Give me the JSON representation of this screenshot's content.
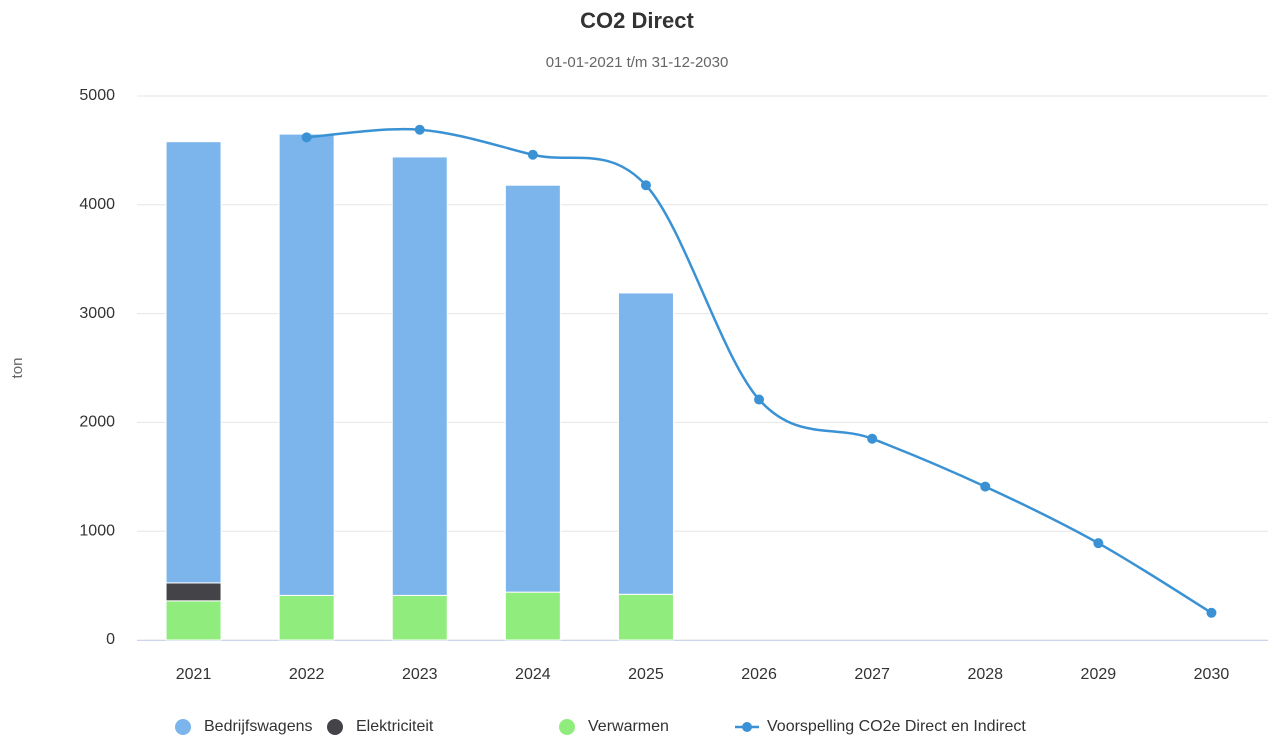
{
  "chart_data": {
    "type": "bar",
    "title": "CO2 Direct",
    "subtitle": "01-01-2021 t/m 31-12-2030",
    "y_label": "ton",
    "categories": [
      "2021",
      "2022",
      "2023",
      "2024",
      "2025",
      "2026",
      "2027",
      "2028",
      "2029",
      "2030"
    ],
    "series": [
      {
        "name": "Bedrijfswagens",
        "color": "#7cb5ec",
        "values": [
          4055,
          4240,
          4030,
          3740,
          2770,
          null,
          null,
          null,
          null,
          null
        ]
      },
      {
        "name": "Elektriciteit",
        "color": "#434348",
        "values": [
          165,
          0,
          0,
          0,
          0,
          null,
          null,
          null,
          null,
          null
        ]
      },
      {
        "name": "Verwarmen",
        "color": "#90ed7d",
        "values": [
          360,
          410,
          410,
          440,
          420,
          null,
          null,
          null,
          null,
          null
        ]
      },
      {
        "name": "Voorspelling CO2e Direct en Indirect",
        "type": "line",
        "color": "#3a92d4",
        "values": [
          null,
          4620,
          4690,
          4460,
          4180,
          2210,
          1850,
          1410,
          890,
          250
        ]
      }
    ],
    "ylim": [
      0,
      5000
    ],
    "yticks": [
      0,
      1000,
      2000,
      3000,
      4000,
      5000
    ],
    "grid": true,
    "stacked": true,
    "legend": "bottom"
  }
}
